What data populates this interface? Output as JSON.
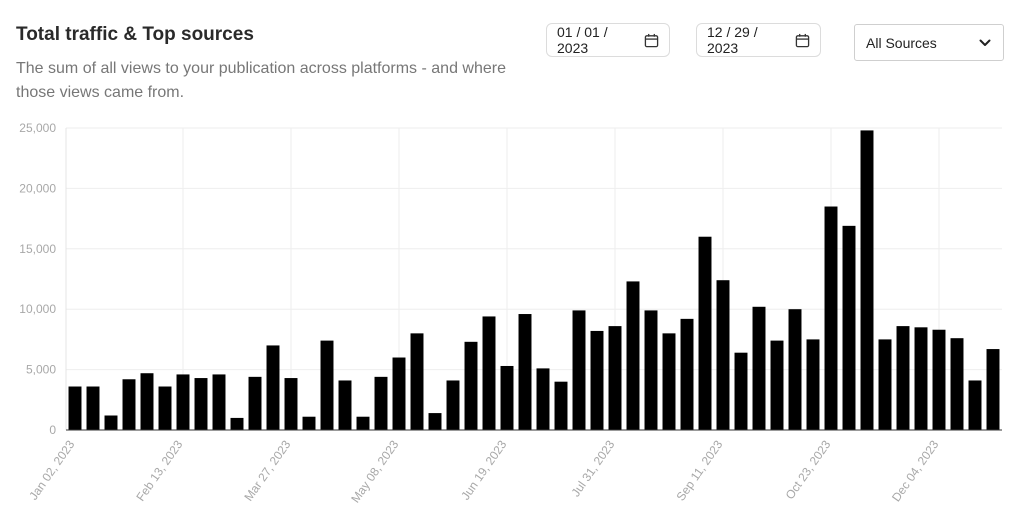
{
  "header": {
    "title": "Total traffic & Top sources",
    "subtitle": "The sum of all views to your publication across platforms - and where those views came from."
  },
  "filters": {
    "start_date": "01 / 01 / 2023",
    "end_date": "12 / 29 / 2023",
    "source": "All Sources",
    "calendar_icon": "calendar-icon",
    "dropdown_icon": "chevron-down-icon"
  },
  "chart_data": {
    "type": "bar",
    "color": "#000000",
    "grid": true,
    "ylim": [
      0,
      25000
    ],
    "yticks": [
      0,
      5000,
      10000,
      15000,
      20000,
      25000
    ],
    "ytick_labels": [
      "0",
      "5,000",
      "10,000",
      "15,000",
      "20,000",
      "25,000"
    ],
    "xtick_labels": [
      "Jan 02, 2023",
      "Feb 13, 2023",
      "Mar 27, 2023",
      "May 08, 2023",
      "Jun 19, 2023",
      "Jul 31, 2023",
      "Sep 11, 2023",
      "Oct 23, 2023",
      "Dec 04, 2023"
    ],
    "xtick_every": 6,
    "values": [
      3600,
      3600,
      1200,
      4200,
      4700,
      3600,
      4600,
      4300,
      4600,
      1000,
      4400,
      7000,
      4300,
      1100,
      7400,
      4100,
      1100,
      4400,
      6000,
      8000,
      1400,
      4100,
      7300,
      9400,
      5300,
      9600,
      5100,
      4000,
      9900,
      8200,
      8600,
      12300,
      9900,
      8000,
      9200,
      16000,
      12400,
      6400,
      10200,
      7400,
      10000,
      7500,
      18500,
      16900,
      24800,
      7500,
      8600,
      8500,
      8300,
      7600,
      4100,
      6700
    ]
  }
}
